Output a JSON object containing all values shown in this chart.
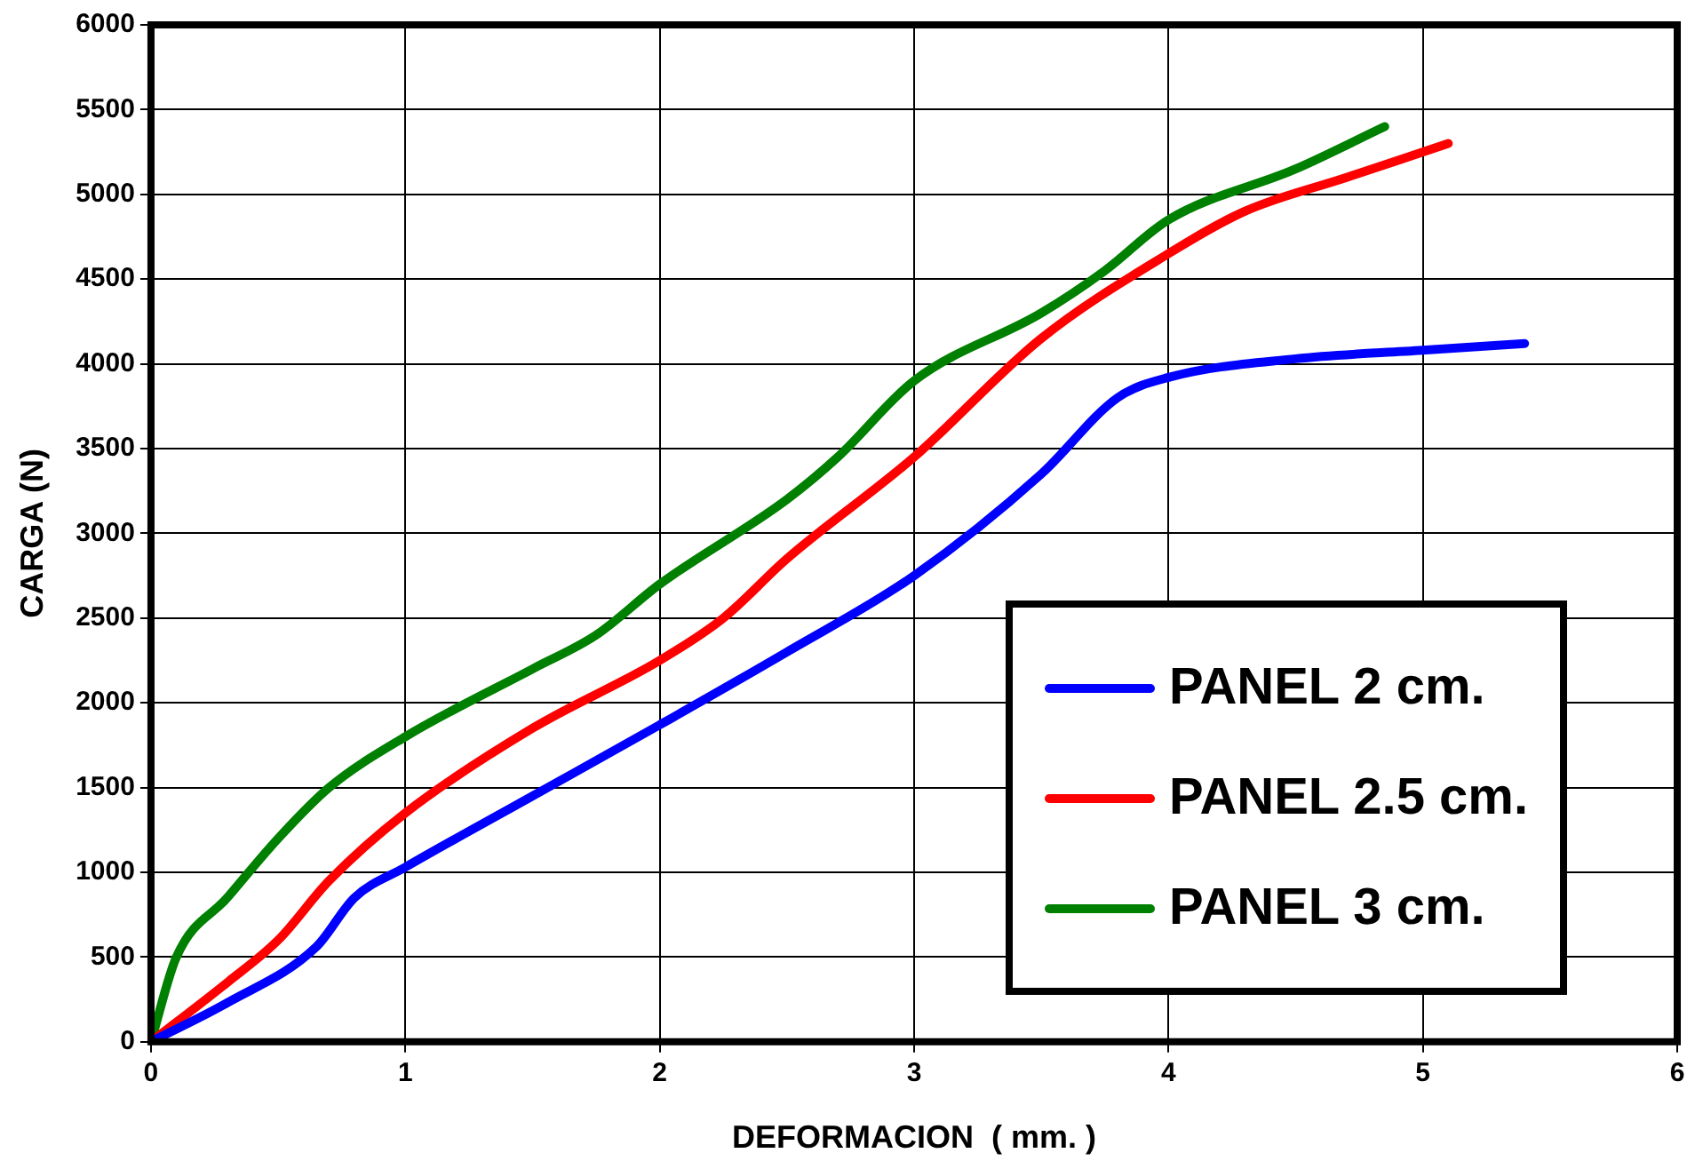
{
  "chart_data": {
    "type": "line",
    "xlabel": "DEFORMACION  ( mm. )",
    "ylabel": "CARGA (N)",
    "xlim": [
      0,
      6
    ],
    "xticks": [
      0,
      1,
      2,
      3,
      4,
      5,
      6
    ],
    "ylim": [
      0,
      6000
    ],
    "yticks": [
      0,
      500,
      1000,
      1500,
      2000,
      2500,
      3000,
      3500,
      4000,
      4500,
      5000,
      5500,
      6000
    ],
    "grid": true,
    "legend": "bottom right",
    "marker": "none",
    "line_style": "solid",
    "series": [
      {
        "name": "PANEL 2 cm.",
        "color": "#0000ff",
        "x": [
          0,
          0.3,
          0.65,
          0.8,
          1,
          1.5,
          2,
          2.5,
          3,
          3.5,
          3.8,
          4,
          4.5,
          5,
          5.4
        ],
        "values": [
          0,
          230,
          560,
          850,
          1030,
          1450,
          1870,
          2300,
          2750,
          3350,
          3800,
          3920,
          4030,
          4080,
          4120
        ]
      },
      {
        "name": "PANEL 2.5 cm.",
        "color": "#ff0000",
        "x": [
          0,
          0.3,
          0.5,
          0.7,
          1,
          1.5,
          2,
          2.25,
          2.5,
          3,
          3.5,
          4,
          4.3,
          4.7,
          5.1
        ],
        "values": [
          0,
          350,
          600,
          950,
          1350,
          1850,
          2250,
          2500,
          2850,
          3450,
          4150,
          4650,
          4900,
          5100,
          5300
        ]
      },
      {
        "name": "PANEL 3 cm.",
        "color": "#008000",
        "x": [
          0,
          0.1,
          0.3,
          0.5,
          0.7,
          1,
          1.5,
          1.75,
          2,
          2.5,
          2.7,
          3,
          3.5,
          3.75,
          4,
          4.5,
          4.85
        ],
        "values": [
          0,
          500,
          850,
          1200,
          1500,
          1800,
          2200,
          2400,
          2700,
          3200,
          3450,
          3900,
          4300,
          4550,
          4850,
          5150,
          5400
        ]
      }
    ]
  }
}
